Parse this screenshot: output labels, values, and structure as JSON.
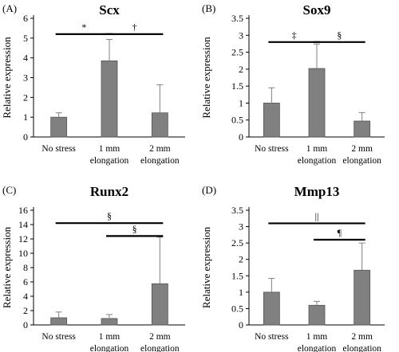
{
  "chart_data": [
    {
      "panel": "(A)",
      "type": "bar",
      "title": "Scx",
      "ylabel": "Relative expression",
      "ylim": [
        0,
        6
      ],
      "yticks": [
        "0",
        "1",
        "2",
        "3",
        "4",
        "5",
        "6"
      ],
      "categories": [
        [
          "No stress"
        ],
        [
          "1 mm",
          "elongation"
        ],
        [
          "2 mm",
          "elongation"
        ]
      ],
      "values": [
        1.0,
        3.85,
        1.22
      ],
      "errors": [
        0.22,
        1.08,
        1.42
      ],
      "significance": [
        {
          "label": "*",
          "from": 0,
          "to": 1,
          "y": 5.2
        },
        {
          "label": "†",
          "from": 1,
          "to": 2,
          "y": 5.2
        }
      ],
      "bar_color": "#808080"
    },
    {
      "panel": "(B)",
      "type": "bar",
      "title": "Sox9",
      "ylabel": "Relative expression",
      "ylim": [
        0,
        3.5
      ],
      "yticks": [
        "0",
        "0.5",
        "1",
        "1.5",
        "2",
        "2.5",
        "3",
        "3.5"
      ],
      "categories": [
        [
          "No stress"
        ],
        [
          "1 mm",
          "elongation"
        ],
        [
          "2 mm",
          "elongation"
        ]
      ],
      "values": [
        1.0,
        2.02,
        0.47
      ],
      "errors": [
        0.45,
        0.72,
        0.25
      ],
      "significance": [
        {
          "label": "‡",
          "from": 0,
          "to": 1,
          "y": 2.8
        },
        {
          "label": "§",
          "from": 1,
          "to": 2,
          "y": 2.8
        }
      ],
      "bar_color": "#808080"
    },
    {
      "panel": "(C)",
      "type": "bar",
      "title": "Runx2",
      "ylabel": "Relative expression",
      "ylim": [
        0,
        16
      ],
      "yticks": [
        "0",
        "2",
        "4",
        "6",
        "8",
        "10",
        "12",
        "14",
        "16"
      ],
      "categories": [
        [
          "No stress"
        ],
        [
          "1 mm",
          "elongation"
        ],
        [
          "2 mm",
          "elongation"
        ]
      ],
      "values": [
        1.0,
        0.9,
        5.75
      ],
      "errors": [
        0.8,
        0.55,
        6.5
      ],
      "significance": [
        {
          "label": "§",
          "from": 0,
          "to": 2,
          "y": 14.2
        },
        {
          "label": "§",
          "from": 1,
          "to": 2,
          "y": 12.4
        }
      ],
      "bar_color": "#808080"
    },
    {
      "panel": "(D)",
      "type": "bar",
      "title": "Mmp13",
      "ylabel": "Relative expression",
      "ylim": [
        0,
        3.5
      ],
      "yticks": [
        "0",
        "0.5",
        "1",
        "1.5",
        "2",
        "2.5",
        "3",
        "3.5"
      ],
      "categories": [
        [
          "No stress"
        ],
        [
          "1 mm",
          "elongation"
        ],
        [
          "2 mm",
          "elongation"
        ]
      ],
      "values": [
        1.0,
        0.6,
        1.67
      ],
      "errors": [
        0.42,
        0.12,
        0.83
      ],
      "significance": [
        {
          "label": "||",
          "from": 0,
          "to": 2,
          "y": 3.1
        },
        {
          "label": "¶",
          "from": 1,
          "to": 2,
          "y": 2.6
        }
      ],
      "bar_color": "#808080"
    }
  ]
}
